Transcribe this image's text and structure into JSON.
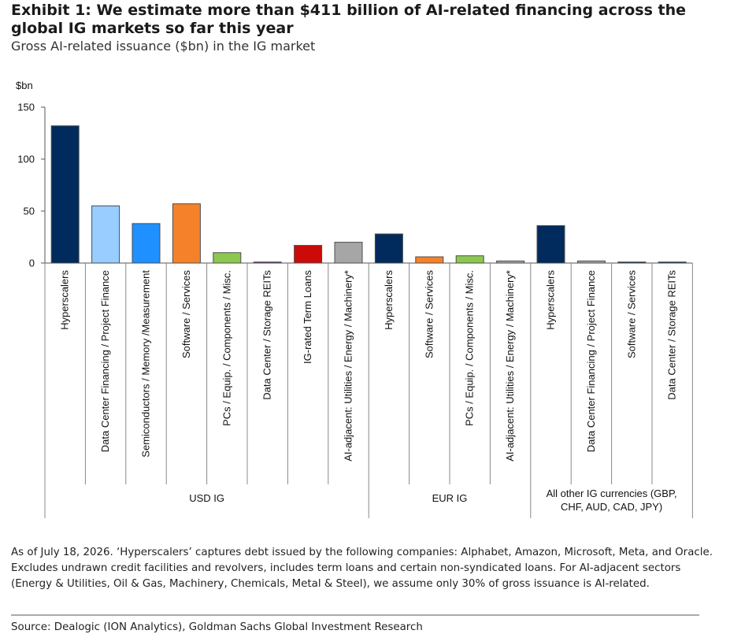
{
  "header": {
    "title": "Exhibit 1: We estimate more than $411 billion of AI-related financing across the global IG markets so far this year",
    "subtitle": "Gross AI-related issuance ($bn) in the IG market"
  },
  "chart_data": {
    "type": "bar",
    "ylabel": "$bn",
    "ylim": [
      0,
      150
    ],
    "yticks": [
      0,
      50,
      100,
      150
    ],
    "grid": false,
    "legend": "none",
    "groups": [
      {
        "label": "USD IG",
        "start": 0,
        "end": 8
      },
      {
        "label": "EUR IG",
        "start": 8,
        "end": 12
      },
      {
        "label": "All other IG currencies (GBP, CHF, AUD, CAD, JPY)",
        "start": 12,
        "end": 16
      }
    ],
    "categories": [
      "Hyperscalers",
      "Data Center Financing / Project Finance",
      "Semiconductors / Memory /Measurement",
      "Software / Services",
      "PCs / Equip. / Components / Misc.",
      "Data Center / Storage REITs",
      "IG-rated Term Loans",
      "AI-adjacent: Utilities / Energy / Machinery*",
      "Hyperscalers",
      "Software / Services",
      "PCs / Equip. / Components / Misc.",
      "AI-adjacent: Utilities / Energy / Machinery*",
      "Hyperscalers",
      "Data Center Financing / Project Finance",
      "Software / Services",
      "Data Center / Storage REITs"
    ],
    "values": [
      132,
      55,
      38,
      57,
      10,
      1,
      17,
      20,
      28,
      6,
      7,
      2,
      36,
      2,
      1,
      1
    ],
    "colors": [
      "#002b5c",
      "#99ccff",
      "#1e90ff",
      "#f5822a",
      "#8cc850",
      "#7a3f9d",
      "#cc0a0a",
      "#a6a6a6",
      "#002b5c",
      "#f5822a",
      "#8cc850",
      "#a6a6a6",
      "#002b5c",
      "#a6a6a6",
      "#002b5c",
      "#002b5c"
    ]
  },
  "footnote": "As of July 18, 2026. ‘Hyperscalers’ captures debt issued by the following companies: Alphabet, Amazon, Microsoft, Meta, and Oracle. Excludes undrawn credit facilities and revolvers, includes term loans and certain non-syndicated loans. For AI-adjacent sectors (Energy & Utilities, Oil & Gas, Machinery, Chemicals, Metal & Steel), we assume only 30% of gross issuance is AI-related.",
  "source": "Source: Dealogic (ION Analytics), Goldman Sachs Global Investment Research"
}
